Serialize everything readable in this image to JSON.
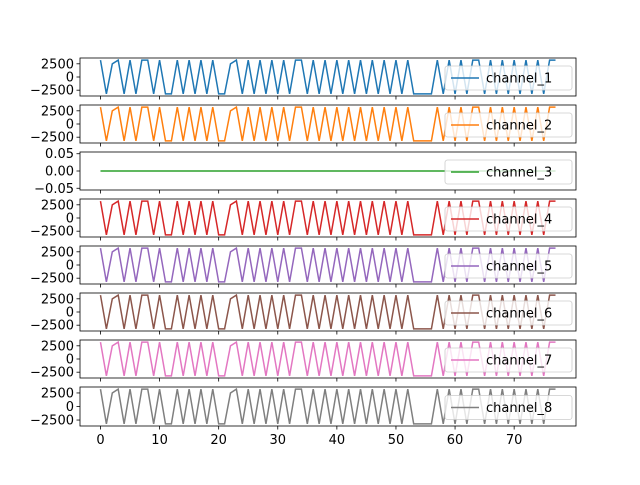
{
  "chart_data": {
    "type": "line",
    "x_range": [
      0,
      77
    ],
    "x_ticks": [
      "0",
      "10",
      "20",
      "30",
      "40",
      "50",
      "60",
      "70"
    ],
    "x_tick_values": [
      0,
      10,
      20,
      30,
      40,
      50,
      60,
      70
    ],
    "legend_placement": "right",
    "grid": false,
    "wave_ylim": [
      -3600,
      3600
    ],
    "wave_y_ticks": [
      "2500",
      "0",
      "−2500"
    ],
    "wave_y_tick_values": [
      2500,
      0,
      -2500
    ],
    "flat_ylim": [
      -0.055,
      0.055
    ],
    "flat_y_ticks": [
      "0.05",
      "0.00",
      "−0.05"
    ],
    "flat_y_tick_values": [
      0.05,
      0.0,
      -0.05
    ],
    "x": [
      0,
      1,
      2,
      3,
      4,
      5,
      6,
      7,
      8,
      9,
      10,
      11,
      12,
      13,
      14,
      15,
      16,
      17,
      18,
      19,
      20,
      21,
      22,
      23,
      24,
      25,
      26,
      27,
      28,
      29,
      30,
      31,
      32,
      33,
      34,
      35,
      36,
      37,
      38,
      39,
      40,
      41,
      42,
      43,
      44,
      45,
      46,
      47,
      48,
      49,
      50,
      51,
      52,
      53,
      54,
      55,
      56,
      57,
      58,
      59,
      60,
      61,
      62,
      63,
      64,
      65,
      66,
      67,
      68,
      69,
      70,
      71,
      72,
      73,
      74,
      75,
      76,
      77
    ],
    "series": [
      {
        "name": "channel_1",
        "color": "#1f77b4",
        "values": [
          3200,
          -3200,
          2500,
          3200,
          -3200,
          3200,
          -3200,
          3200,
          3200,
          -3200,
          3200,
          -3200,
          -3200,
          3200,
          -3200,
          3200,
          -3200,
          3200,
          -3200,
          3200,
          -3200,
          -3200,
          2500,
          3200,
          -3200,
          3200,
          -3200,
          3200,
          -3200,
          3200,
          -3200,
          3200,
          -3200,
          3200,
          3200,
          -3200,
          3200,
          -3200,
          3200,
          -3200,
          3200,
          -3200,
          3200,
          -3200,
          3200,
          -3200,
          3200,
          -3200,
          3200,
          -3200,
          3200,
          -3200,
          3200,
          -3200,
          -3200,
          -3200,
          -3200,
          3200,
          -3200,
          3200,
          -3200,
          3200,
          -3200,
          3200,
          3200,
          -3200,
          3200,
          -3200,
          3200,
          -3200,
          3200,
          -3200,
          3200,
          -3200,
          3200,
          -3200,
          3200,
          3200
        ]
      },
      {
        "name": "channel_2",
        "color": "#ff7f0e",
        "values": [
          3200,
          -3200,
          2500,
          3200,
          -3200,
          3200,
          -3200,
          3200,
          3200,
          -3200,
          3200,
          -3200,
          -3200,
          3200,
          -3200,
          3200,
          -3200,
          3200,
          -3200,
          3200,
          -3200,
          -3200,
          2500,
          3200,
          -3200,
          3200,
          -3200,
          3200,
          -3200,
          3200,
          -3200,
          3200,
          -3200,
          3200,
          3200,
          -3200,
          3200,
          -3200,
          3200,
          -3200,
          3200,
          -3200,
          3200,
          -3200,
          3200,
          -3200,
          3200,
          -3200,
          3200,
          -3200,
          3200,
          -3200,
          3200,
          -3200,
          -3200,
          -3200,
          -3200,
          3200,
          -3200,
          3200,
          -3200,
          3200,
          -3200,
          3200,
          3200,
          -3200,
          3200,
          -3200,
          3200,
          -3200,
          3200,
          -3200,
          3200,
          -3200,
          3200,
          -3200,
          3200,
          3200
        ]
      },
      {
        "name": "channel_3",
        "color": "#2ca02c",
        "values": [
          0,
          0,
          0,
          0,
          0,
          0,
          0,
          0,
          0,
          0,
          0,
          0,
          0,
          0,
          0,
          0,
          0,
          0,
          0,
          0,
          0,
          0,
          0,
          0,
          0,
          0,
          0,
          0,
          0,
          0,
          0,
          0,
          0,
          0,
          0,
          0,
          0,
          0,
          0,
          0,
          0,
          0,
          0,
          0,
          0,
          0,
          0,
          0,
          0,
          0,
          0,
          0,
          0,
          0,
          0,
          0,
          0,
          0,
          0,
          0,
          0,
          0,
          0,
          0,
          0,
          0,
          0,
          0,
          0,
          0,
          0,
          0,
          0,
          0,
          0,
          0,
          0,
          0
        ]
      },
      {
        "name": "channel_4",
        "color": "#d62728",
        "values": [
          3200,
          -3200,
          2500,
          3200,
          -3200,
          3200,
          -3200,
          3200,
          3200,
          -3200,
          3200,
          -3200,
          -3200,
          3200,
          -3200,
          3200,
          -3200,
          3200,
          -3200,
          3200,
          -3200,
          -3200,
          2500,
          3200,
          -3200,
          3200,
          -3200,
          3200,
          -3200,
          3200,
          -3200,
          3200,
          -3200,
          3200,
          3200,
          -3200,
          3200,
          -3200,
          3200,
          -3200,
          3200,
          -3200,
          3200,
          -3200,
          3200,
          -3200,
          3200,
          -3200,
          3200,
          -3200,
          3200,
          -3200,
          3200,
          -3200,
          -3200,
          -3200,
          -3200,
          3200,
          -3200,
          3200,
          -3200,
          3200,
          -3200,
          3200,
          3200,
          -3200,
          3200,
          -3200,
          3200,
          -3200,
          3200,
          -3200,
          3200,
          -3200,
          3200,
          -3200,
          3200,
          3200
        ]
      },
      {
        "name": "channel_5",
        "color": "#9467bd",
        "values": [
          3200,
          -3200,
          2500,
          3200,
          -3200,
          3200,
          -3200,
          3200,
          3200,
          -3200,
          3200,
          -3200,
          -3200,
          3200,
          -3200,
          3200,
          -3200,
          3200,
          -3200,
          3200,
          -3200,
          -3200,
          2500,
          3200,
          -3200,
          3200,
          -3200,
          3200,
          -3200,
          3200,
          -3200,
          3200,
          -3200,
          3200,
          3200,
          -3200,
          3200,
          -3200,
          3200,
          -3200,
          3200,
          -3200,
          3200,
          -3200,
          3200,
          -3200,
          3200,
          -3200,
          3200,
          -3200,
          3200,
          -3200,
          3200,
          -3200,
          -3200,
          -3200,
          -3200,
          3200,
          -3200,
          3200,
          -3200,
          3200,
          -3200,
          3200,
          3200,
          -3200,
          3200,
          -3200,
          3200,
          -3200,
          3200,
          -3200,
          3200,
          -3200,
          3200,
          -3200,
          3200,
          3200
        ]
      },
      {
        "name": "channel_6",
        "color": "#8c564b",
        "values": [
          3200,
          -3200,
          2500,
          3200,
          -3200,
          3200,
          -3200,
          3200,
          3200,
          -3200,
          3200,
          -3200,
          -3200,
          3200,
          -3200,
          3200,
          -3200,
          3200,
          -3200,
          3200,
          -3200,
          -3200,
          2500,
          3200,
          -3200,
          3200,
          -3200,
          3200,
          -3200,
          3200,
          -3200,
          3200,
          -3200,
          3200,
          3200,
          -3200,
          3200,
          -3200,
          3200,
          -3200,
          3200,
          -3200,
          3200,
          -3200,
          3200,
          -3200,
          3200,
          -3200,
          3200,
          -3200,
          3200,
          -3200,
          3200,
          -3200,
          -3200,
          -3200,
          -3200,
          3200,
          -3200,
          3200,
          -3200,
          3200,
          -3200,
          3200,
          3200,
          -3200,
          3200,
          -3200,
          3200,
          -3200,
          3200,
          -3200,
          3200,
          -3200,
          3200,
          -3200,
          3200,
          3200
        ]
      },
      {
        "name": "channel_7",
        "color": "#e377c2",
        "values": [
          3200,
          -3200,
          2500,
          3200,
          -3200,
          3200,
          -3200,
          3200,
          3200,
          -3200,
          3200,
          -3200,
          -3200,
          3200,
          -3200,
          3200,
          -3200,
          3200,
          -3200,
          3200,
          -3200,
          -3200,
          2500,
          3200,
          -3200,
          3200,
          -3200,
          3200,
          -3200,
          3200,
          -3200,
          3200,
          -3200,
          3200,
          3200,
          -3200,
          3200,
          -3200,
          3200,
          -3200,
          3200,
          -3200,
          3200,
          -3200,
          3200,
          -3200,
          3200,
          -3200,
          3200,
          -3200,
          3200,
          -3200,
          3200,
          -3200,
          -3200,
          -3200,
          -3200,
          3200,
          -3200,
          3200,
          -3200,
          3200,
          -3200,
          3200,
          3200,
          -3200,
          3200,
          -3200,
          3200,
          -3200,
          3200,
          -3200,
          3200,
          -3200,
          3200,
          -3200,
          3200,
          3200
        ]
      },
      {
        "name": "channel_8",
        "color": "#7f7f7f",
        "values": [
          3200,
          -3200,
          2500,
          3200,
          -3200,
          3200,
          -3200,
          3200,
          3200,
          -3200,
          3200,
          -3200,
          -3200,
          3200,
          -3200,
          3200,
          -3200,
          3200,
          -3200,
          3200,
          -3200,
          -3200,
          2500,
          3200,
          -3200,
          3200,
          -3200,
          3200,
          -3200,
          3200,
          -3200,
          3200,
          -3200,
          3200,
          3200,
          -3200,
          3200,
          -3200,
          3200,
          -3200,
          3200,
          -3200,
          3200,
          -3200,
          3200,
          -3200,
          3200,
          -3200,
          3200,
          -3200,
          3200,
          -3200,
          3200,
          -3200,
          -3200,
          -3200,
          -3200,
          3200,
          -3200,
          3200,
          -3200,
          3200,
          -3200,
          3200,
          3200,
          -3200,
          3200,
          -3200,
          3200,
          -3200,
          3200,
          -3200,
          3200,
          -3200,
          3200,
          -3200,
          3200,
          3200
        ]
      }
    ]
  }
}
